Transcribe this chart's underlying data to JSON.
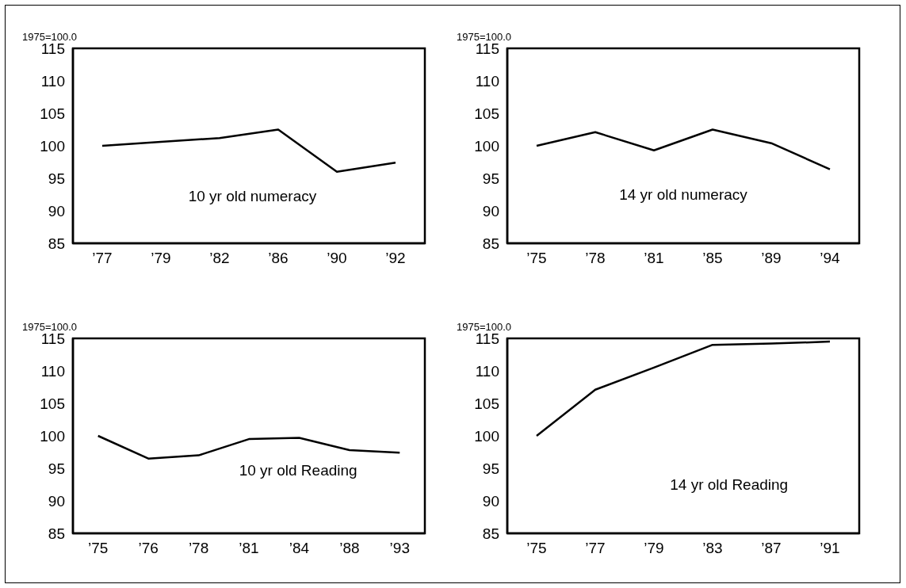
{
  "chart_data": [
    {
      "type": "line",
      "ylabel": "1975=100.0",
      "categories": [
        "’77",
        "’79",
        "’82",
        "’86",
        "’90",
        "’92"
      ],
      "values": [
        100.0,
        100.6,
        101.2,
        102.5,
        96.0,
        97.4
      ],
      "color": "#000000",
      "ylim": [
        85,
        115
      ],
      "yticks": [
        85,
        90,
        95,
        100,
        105,
        110,
        115
      ],
      "marker": "none",
      "line_style": "solid",
      "annotations": [
        "10 yr old numeracy"
      ]
    },
    {
      "type": "line",
      "ylabel": "1975=100.0",
      "categories": [
        "’75",
        "’78",
        "’81",
        "’85",
        "’89",
        "’94"
      ],
      "values": [
        100.0,
        102.1,
        99.3,
        102.5,
        100.4,
        96.4
      ],
      "color": "#000000",
      "ylim": [
        85,
        115
      ],
      "yticks": [
        85,
        90,
        95,
        100,
        105,
        110,
        115
      ],
      "marker": "none",
      "line_style": "solid",
      "annotations": [
        "14 yr old numeracy"
      ]
    },
    {
      "type": "line",
      "ylabel": "1975=100.0",
      "categories": [
        "’75",
        "’76",
        "’78",
        "’81",
        "’84",
        "’88",
        "’93"
      ],
      "values": [
        100.0,
        96.5,
        97.0,
        99.5,
        99.7,
        97.8,
        97.4
      ],
      "color": "#000000",
      "ylim": [
        85,
        115
      ],
      "yticks": [
        85,
        90,
        95,
        100,
        105,
        110,
        115
      ],
      "marker": "none",
      "line_style": "solid",
      "annotations": [
        "10 yr old Reading"
      ]
    },
    {
      "type": "line",
      "ylabel": "1975=100.0",
      "categories": [
        "’75",
        "’77",
        "’79",
        "’83",
        "’87",
        "’91"
      ],
      "values": [
        100.0,
        107.1,
        110.5,
        114.0,
        114.2,
        114.5
      ],
      "color": "#000000",
      "ylim": [
        85,
        115
      ],
      "yticks": [
        85,
        90,
        95,
        100,
        105,
        110,
        115
      ],
      "marker": "none",
      "line_style": "solid",
      "annotations": [
        "14 yr old Reading"
      ]
    }
  ]
}
